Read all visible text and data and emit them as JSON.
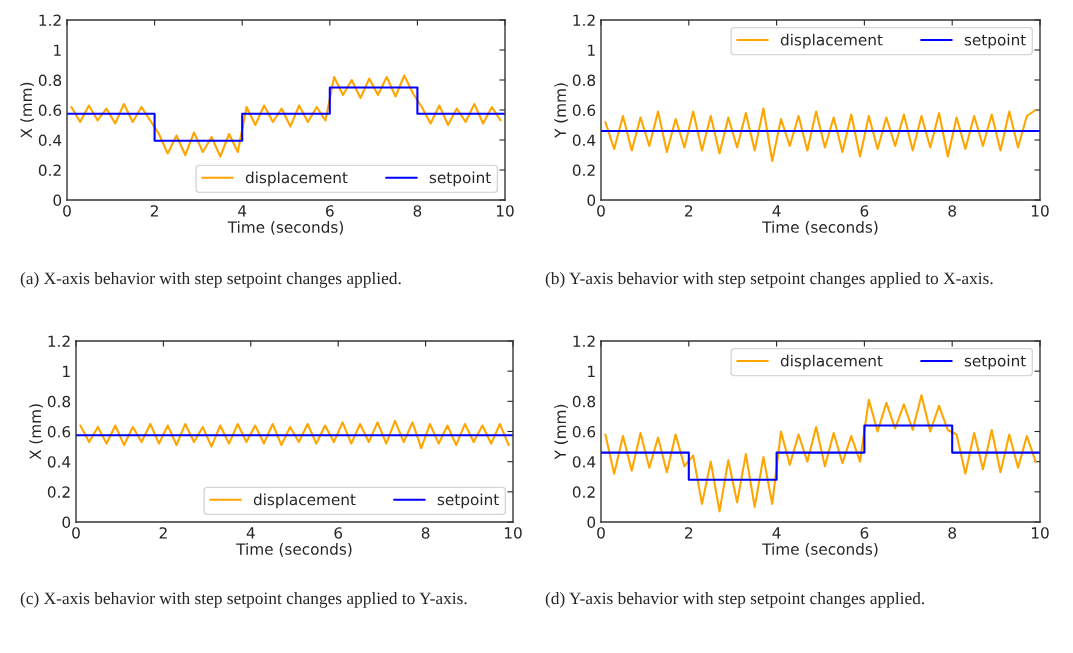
{
  "chart_data": [
    {
      "type": "line",
      "xlabel": "Time (seconds)",
      "ylabel": "X (mm)",
      "xlim": [
        0,
        10
      ],
      "xticks": [
        0,
        2,
        4,
        6,
        8,
        10
      ],
      "ylim": [
        0,
        1.2
      ],
      "yticks": [
        0,
        0.2,
        0.4,
        0.6,
        0.8,
        1,
        1.2
      ],
      "legend": "bottom right",
      "annotations": [
        "(a) X-axis behavior with step setpoint changes applied."
      ],
      "x": [
        0.1,
        0.3,
        0.5,
        0.7,
        0.9,
        1.1,
        1.3,
        1.5,
        1.7,
        1.9,
        2.1,
        2.3,
        2.5,
        2.7,
        2.9,
        3.1,
        3.3,
        3.5,
        3.7,
        3.9,
        4.1,
        4.3,
        4.5,
        4.7,
        4.9,
        5.1,
        5.3,
        5.5,
        5.7,
        5.9,
        6.1,
        6.3,
        6.5,
        6.7,
        6.9,
        7.1,
        7.3,
        7.5,
        7.7,
        7.9,
        8.1,
        8.3,
        8.5,
        8.7,
        8.9,
        9.1,
        9.3,
        9.5,
        9.7,
        9.9
      ],
      "series": [
        {
          "name": "displacement",
          "color": "#ffa500",
          "values": [
            0.62,
            0.52,
            0.63,
            0.53,
            0.61,
            0.51,
            0.64,
            0.52,
            0.62,
            0.53,
            0.44,
            0.31,
            0.43,
            0.3,
            0.45,
            0.32,
            0.42,
            0.29,
            0.44,
            0.32,
            0.62,
            0.5,
            0.63,
            0.52,
            0.61,
            0.49,
            0.63,
            0.52,
            0.62,
            0.53,
            0.82,
            0.7,
            0.8,
            0.68,
            0.81,
            0.7,
            0.82,
            0.69,
            0.83,
            0.71,
            0.62,
            0.51,
            0.63,
            0.5,
            0.61,
            0.52,
            0.64,
            0.51,
            0.62,
            0.53
          ]
        },
        {
          "name": "setpoint",
          "color": "#0000ff",
          "type": "step",
          "x": [
            0,
            2,
            4,
            6,
            8,
            10
          ],
          "values": [
            0.575,
            0.395,
            0.575,
            0.75,
            0.575,
            0.575
          ]
        }
      ]
    },
    {
      "type": "line",
      "xlabel": "Time (seconds)",
      "ylabel": "Y (mm)",
      "xlim": [
        0,
        10
      ],
      "xticks": [
        0,
        2,
        4,
        6,
        8,
        10
      ],
      "ylim": [
        0,
        1.2
      ],
      "yticks": [
        0,
        0.2,
        0.4,
        0.6,
        0.8,
        1,
        1.2
      ],
      "legend": "top right",
      "annotations": [
        "(b) Y-axis behavior with step setpoint changes applied to X-axis."
      ],
      "x": [
        0.1,
        0.3,
        0.5,
        0.7,
        0.9,
        1.1,
        1.3,
        1.5,
        1.7,
        1.9,
        2.1,
        2.3,
        2.5,
        2.7,
        2.9,
        3.1,
        3.3,
        3.5,
        3.7,
        3.9,
        4.1,
        4.3,
        4.5,
        4.7,
        4.9,
        5.1,
        5.3,
        5.5,
        5.7,
        5.9,
        6.1,
        6.3,
        6.5,
        6.7,
        6.9,
        7.1,
        7.3,
        7.5,
        7.7,
        7.9,
        8.1,
        8.3,
        8.5,
        8.7,
        8.9,
        9.1,
        9.3,
        9.5,
        9.7,
        9.9
      ],
      "series": [
        {
          "name": "displacement",
          "color": "#ffa500",
          "values": [
            0.52,
            0.34,
            0.56,
            0.33,
            0.55,
            0.36,
            0.59,
            0.32,
            0.54,
            0.35,
            0.59,
            0.33,
            0.56,
            0.31,
            0.55,
            0.35,
            0.58,
            0.33,
            0.61,
            0.26,
            0.54,
            0.36,
            0.56,
            0.33,
            0.59,
            0.35,
            0.55,
            0.32,
            0.57,
            0.29,
            0.56,
            0.34,
            0.55,
            0.36,
            0.57,
            0.33,
            0.56,
            0.35,
            0.58,
            0.29,
            0.55,
            0.34,
            0.56,
            0.36,
            0.57,
            0.33,
            0.59,
            0.35,
            0.56,
            0.6
          ]
        },
        {
          "name": "setpoint",
          "color": "#0000ff",
          "type": "step",
          "x": [
            0,
            10
          ],
          "values": [
            0.46,
            0.46
          ]
        }
      ]
    },
    {
      "type": "line",
      "xlabel": "Time (seconds)",
      "ylabel": "X (mm)",
      "xlim": [
        0,
        10
      ],
      "xticks": [
        0,
        2,
        4,
        6,
        8,
        10
      ],
      "ylim": [
        0,
        1.2
      ],
      "yticks": [
        0,
        0.2,
        0.4,
        0.6,
        0.8,
        1,
        1.2
      ],
      "legend": "bottom right",
      "annotations": [
        "(c) X-axis behavior with step setpoint changes applied to Y-axis."
      ],
      "x": [
        0.1,
        0.3,
        0.5,
        0.7,
        0.9,
        1.1,
        1.3,
        1.5,
        1.7,
        1.9,
        2.1,
        2.3,
        2.5,
        2.7,
        2.9,
        3.1,
        3.3,
        3.5,
        3.7,
        3.9,
        4.1,
        4.3,
        4.5,
        4.7,
        4.9,
        5.1,
        5.3,
        5.5,
        5.7,
        5.9,
        6.1,
        6.3,
        6.5,
        6.7,
        6.9,
        7.1,
        7.3,
        7.5,
        7.7,
        7.9,
        8.1,
        8.3,
        8.5,
        8.7,
        8.9,
        9.1,
        9.3,
        9.5,
        9.7,
        9.9
      ],
      "series": [
        {
          "name": "displacement",
          "color": "#ffa500",
          "values": [
            0.64,
            0.53,
            0.63,
            0.52,
            0.64,
            0.51,
            0.63,
            0.53,
            0.65,
            0.52,
            0.64,
            0.51,
            0.65,
            0.53,
            0.63,
            0.5,
            0.64,
            0.52,
            0.65,
            0.53,
            0.64,
            0.52,
            0.65,
            0.51,
            0.63,
            0.53,
            0.65,
            0.52,
            0.64,
            0.53,
            0.66,
            0.52,
            0.65,
            0.53,
            0.66,
            0.52,
            0.67,
            0.53,
            0.66,
            0.49,
            0.65,
            0.52,
            0.64,
            0.51,
            0.65,
            0.53,
            0.64,
            0.52,
            0.65,
            0.51
          ]
        },
        {
          "name": "setpoint",
          "color": "#0000ff",
          "type": "step",
          "x": [
            0,
            10
          ],
          "values": [
            0.575,
            0.575
          ]
        }
      ]
    },
    {
      "type": "line",
      "xlabel": "Time (seconds)",
      "ylabel": "Y (mm)",
      "xlim": [
        0,
        10
      ],
      "xticks": [
        0,
        2,
        4,
        6,
        8,
        10
      ],
      "ylim": [
        0,
        1.2
      ],
      "yticks": [
        0,
        0.2,
        0.4,
        0.6,
        0.8,
        1,
        1.2
      ],
      "legend": "top right",
      "annotations": [
        "(d) Y-axis behavior with step setpoint changes applied."
      ],
      "x": [
        0.1,
        0.3,
        0.5,
        0.7,
        0.9,
        1.1,
        1.3,
        1.5,
        1.7,
        1.9,
        2.1,
        2.3,
        2.5,
        2.7,
        2.9,
        3.1,
        3.3,
        3.5,
        3.7,
        3.9,
        4.1,
        4.3,
        4.5,
        4.7,
        4.9,
        5.1,
        5.3,
        5.5,
        5.7,
        5.9,
        6.1,
        6.3,
        6.5,
        6.7,
        6.9,
        7.1,
        7.3,
        7.5,
        7.7,
        7.9,
        8.1,
        8.3,
        8.5,
        8.7,
        8.9,
        9.1,
        9.3,
        9.5,
        9.7,
        9.9
      ],
      "series": [
        {
          "name": "displacement",
          "color": "#ffa500",
          "values": [
            0.58,
            0.32,
            0.57,
            0.34,
            0.59,
            0.36,
            0.56,
            0.33,
            0.58,
            0.37,
            0.44,
            0.12,
            0.4,
            0.07,
            0.41,
            0.13,
            0.45,
            0.1,
            0.43,
            0.12,
            0.6,
            0.38,
            0.58,
            0.4,
            0.63,
            0.37,
            0.59,
            0.39,
            0.57,
            0.4,
            0.81,
            0.6,
            0.79,
            0.62,
            0.78,
            0.61,
            0.84,
            0.6,
            0.77,
            0.61,
            0.58,
            0.32,
            0.59,
            0.35,
            0.61,
            0.33,
            0.58,
            0.36,
            0.57,
            0.4
          ]
        },
        {
          "name": "setpoint",
          "color": "#0000ff",
          "type": "step",
          "x": [
            0,
            2,
            4,
            6,
            8,
            10
          ],
          "values": [
            0.46,
            0.28,
            0.46,
            0.64,
            0.46,
            0.46
          ]
        }
      ]
    }
  ]
}
